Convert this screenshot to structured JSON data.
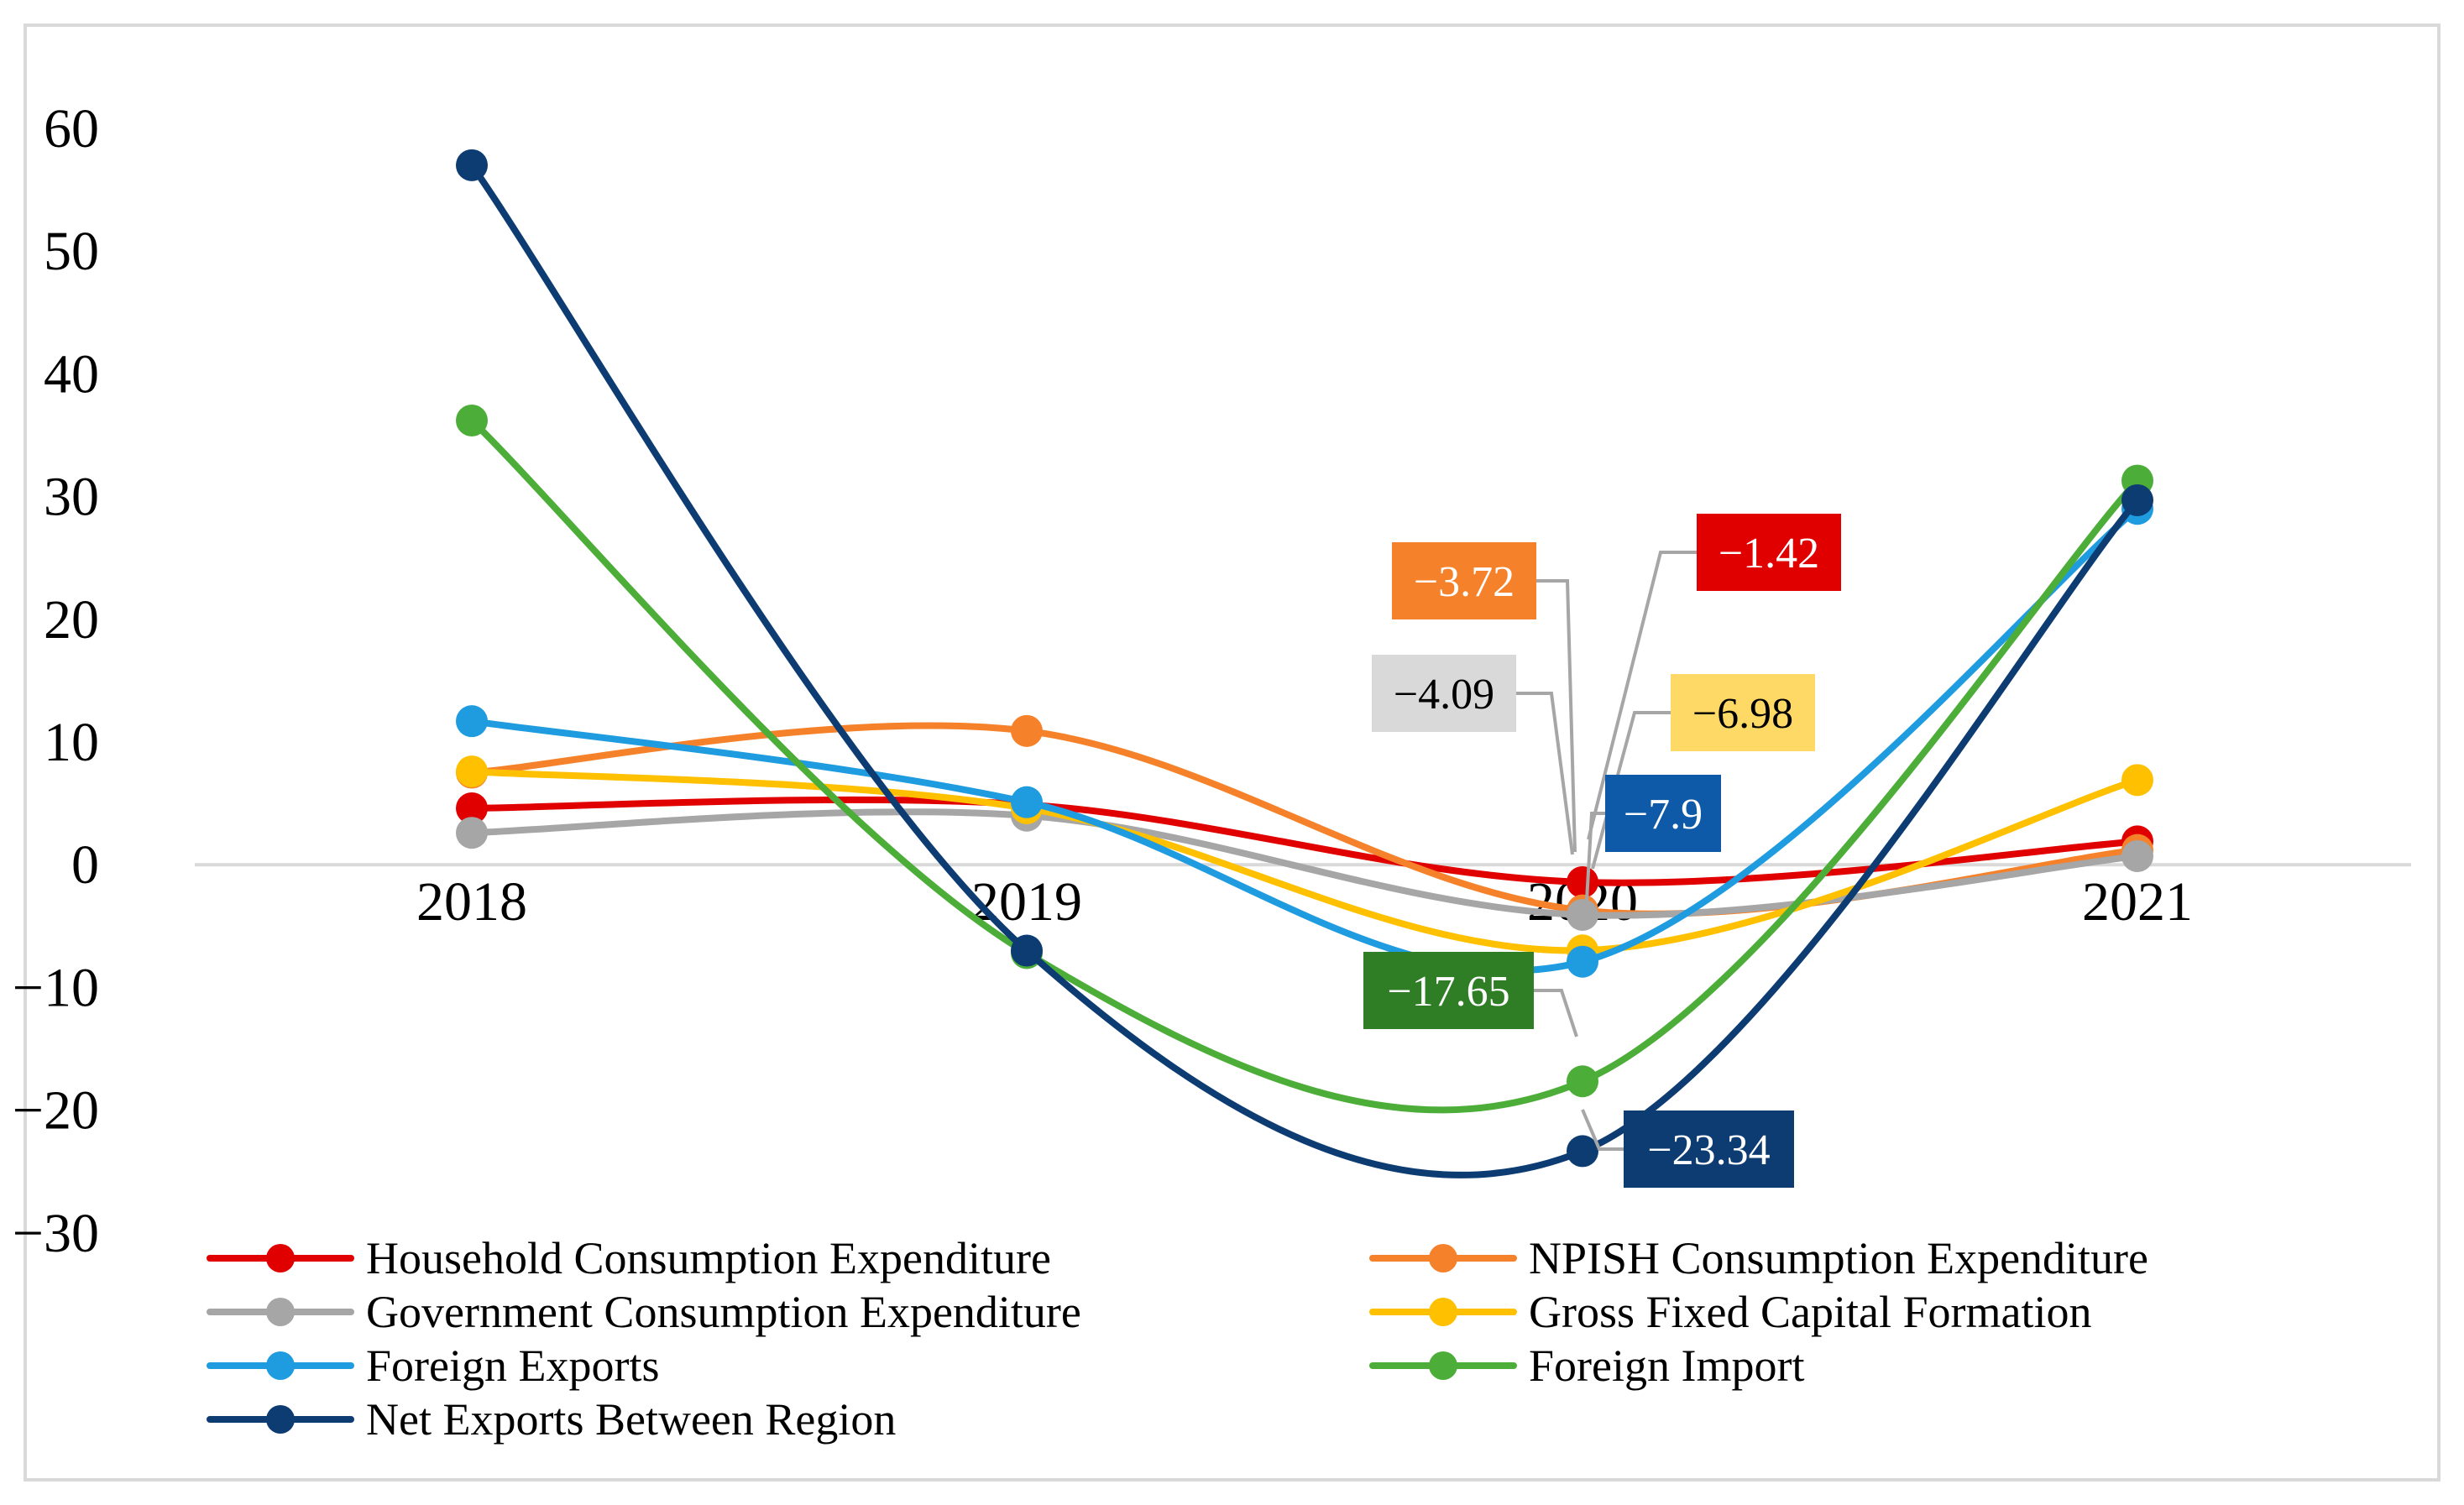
{
  "chart_data": {
    "type": "line",
    "title": "",
    "xlabel": "",
    "ylabel": "",
    "categories": [
      "2018",
      "2019",
      "2020",
      "2021"
    ],
    "ylim": [
      -30,
      60
    ],
    "yticks": [
      60,
      50,
      40,
      30,
      20,
      10,
      0,
      -10,
      -20,
      -30
    ],
    "ytick_labels": [
      "60",
      "50",
      "40",
      "30",
      "20",
      "10",
      "0",
      "−10",
      "−20",
      "−30"
    ],
    "grid": false,
    "smooth": true,
    "legend_position": "bottom",
    "series": [
      {
        "name": "Household Consumption Expenditure",
        "color": "#e00000",
        "values": [
          4.6,
          4.9,
          -1.42,
          1.9
        ]
      },
      {
        "name": "NPISH Consumption Expenditure",
        "color": "#f5822a",
        "values": [
          7.5,
          10.9,
          -3.72,
          1.2
        ]
      },
      {
        "name": "Government Consumption Expenditure",
        "color": "#a6a6a6",
        "values": [
          2.6,
          4.0,
          -4.09,
          0.7
        ]
      },
      {
        "name": "Gross Fixed Capital Formation",
        "color": "#ffc000",
        "values": [
          7.6,
          4.6,
          -6.98,
          6.9
        ]
      },
      {
        "name": "Foreign Exports",
        "color": "#1f9be0",
        "values": [
          11.7,
          5.1,
          -7.9,
          29.0
        ]
      },
      {
        "name": "Foreign Import",
        "color": "#4cae38",
        "values": [
          36.2,
          -7.2,
          -17.65,
          31.3
        ]
      },
      {
        "name": "Net Exports Between Region",
        "color": "#0d3c73",
        "values": [
          57.0,
          -7.0,
          -23.34,
          29.7
        ]
      }
    ],
    "annotations": [
      {
        "text": "−1.42",
        "series": "Household Consumption Expenditure",
        "category": "2020",
        "box_color": "#e00000",
        "text_color": "#ffffff"
      },
      {
        "text": "−3.72",
        "series": "NPISH Consumption Expenditure",
        "category": "2020",
        "box_color": "#f5822a",
        "text_color": "#ffffff"
      },
      {
        "text": "−4.09",
        "series": "Government Consumption Expenditure",
        "category": "2020",
        "box_color": "#d9d9d9",
        "text_color": "#000000"
      },
      {
        "text": "−6.98",
        "series": "Gross Fixed Capital Formation",
        "category": "2020",
        "box_color": "#ffd966",
        "text_color": "#000000"
      },
      {
        "text": "−7.9",
        "series": "Foreign Exports",
        "category": "2020",
        "box_color": "#0f5aa8",
        "text_color": "#ffffff"
      },
      {
        "text": "−17.65",
        "series": "Foreign Import",
        "category": "2020",
        "box_color": "#2f7d25",
        "text_color": "#ffffff"
      },
      {
        "text": "−23.34",
        "series": "Net Exports Between Region",
        "category": "2020",
        "box_color": "#0d3c73",
        "text_color": "#ffffff"
      }
    ]
  }
}
